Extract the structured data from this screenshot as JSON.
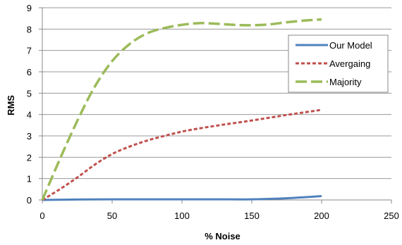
{
  "chart_data": {
    "type": "line",
    "title": "",
    "xlabel": "% Noise",
    "ylabel": "RMS",
    "xlim": [
      0,
      250
    ],
    "ylim": [
      0,
      9
    ],
    "xticks": [
      0,
      50,
      100,
      150,
      200,
      250
    ],
    "yticks": [
      0,
      1,
      2,
      3,
      4,
      5,
      6,
      7,
      8,
      9
    ],
    "grid": "horizontal",
    "legend_position": "right",
    "series": [
      {
        "name": "Our Model",
        "color": "#4f81bd",
        "dash": "solid",
        "x": [
          0,
          25,
          50,
          75,
          100,
          125,
          150,
          175,
          200
        ],
        "y": [
          0,
          0.02,
          0.03,
          0.03,
          0.03,
          0.03,
          0.03,
          0.08,
          0.18
        ]
      },
      {
        "name": "Avergaing",
        "color": "#c0504d",
        "dash": "short-dash",
        "x": [
          0,
          12.5,
          25,
          37.5,
          50,
          62.5,
          75,
          87.5,
          100,
          112.5,
          125,
          137.5,
          150,
          162.5,
          175,
          187.5,
          200
        ],
        "y": [
          0,
          0.5,
          1.05,
          1.65,
          2.15,
          2.5,
          2.78,
          3.0,
          3.2,
          3.35,
          3.48,
          3.6,
          3.72,
          3.85,
          3.98,
          4.1,
          4.22
        ]
      },
      {
        "name": "Majority",
        "color": "#9bbb59",
        "dash": "long-dash",
        "x": [
          0,
          12.5,
          25,
          37.5,
          50,
          62.5,
          75,
          87.5,
          100,
          112.5,
          125,
          137.5,
          150,
          162.5,
          175,
          187.5,
          200
        ],
        "y": [
          0,
          1.9,
          3.7,
          5.3,
          6.5,
          7.3,
          7.8,
          8.05,
          8.2,
          8.28,
          8.25,
          8.2,
          8.18,
          8.22,
          8.32,
          8.4,
          8.45
        ]
      }
    ]
  }
}
